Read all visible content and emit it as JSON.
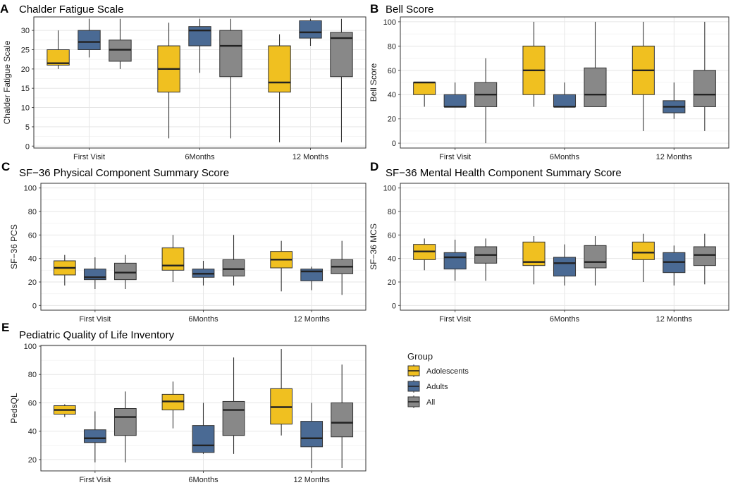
{
  "colors": {
    "Adolescents": "#F0C020",
    "Adults": "#4A6A94",
    "All": "#888888",
    "grid": "#E6E6E6",
    "frame": "#333333"
  },
  "legend": {
    "title": "Group",
    "items": [
      {
        "name": "Adolescents",
        "color_key": "Adolescents"
      },
      {
        "name": "Adults",
        "color_key": "Adults"
      },
      {
        "name": "All",
        "color_key": "All"
      }
    ]
  },
  "chart_data": [
    {
      "letter": "A",
      "title": "Chalder Fatigue Scale",
      "type": "boxplot",
      "ylabel": "Chalder Fatigue Scale",
      "ylim": [
        -0.5,
        33.5
      ],
      "yticks": [
        0,
        5,
        10,
        15,
        20,
        25,
        30
      ],
      "categories": [
        "First Visit",
        "6Months",
        "12 Months"
      ],
      "groups": [
        "Adolescents",
        "Adults",
        "All"
      ],
      "boxes": [
        [
          {
            "min": 20,
            "q1": 21,
            "median": 21.5,
            "q3": 25,
            "max": 30
          },
          {
            "min": 23,
            "q1": 25,
            "median": 27,
            "q3": 30,
            "max": 33
          },
          {
            "min": 20,
            "q1": 22,
            "median": 25,
            "q3": 27.5,
            "max": 33
          }
        ],
        [
          {
            "min": 2,
            "q1": 14,
            "median": 20,
            "q3": 26,
            "max": 32
          },
          {
            "min": 19,
            "q1": 26,
            "median": 30,
            "q3": 31,
            "max": 33
          },
          {
            "min": 2,
            "q1": 18,
            "median": 26,
            "q3": 30,
            "max": 33
          }
        ],
        [
          {
            "min": 1,
            "q1": 14,
            "median": 16.5,
            "q3": 26,
            "max": 29
          },
          {
            "min": 26,
            "q1": 28,
            "median": 29.5,
            "q3": 32.5,
            "max": 33
          },
          {
            "min": 1,
            "q1": 18,
            "median": 28,
            "q3": 29.5,
            "max": 33
          }
        ]
      ]
    },
    {
      "letter": "B",
      "title": "Bell Score",
      "type": "boxplot",
      "ylabel": "Bell Score",
      "ylim": [
        -4,
        104
      ],
      "yticks": [
        0,
        20,
        40,
        60,
        80,
        100
      ],
      "categories": [
        "First Visit",
        "6Months",
        "12 Months"
      ],
      "groups": [
        "Adolescents",
        "Adults",
        "All"
      ],
      "boxes": [
        [
          {
            "min": 30,
            "q1": 40,
            "median": 50,
            "q3": 50,
            "max": 50
          },
          {
            "min": 30,
            "q1": 30,
            "median": 30,
            "q3": 40,
            "max": 50
          },
          {
            "min": 0,
            "q1": 30,
            "median": 40,
            "q3": 50,
            "max": 70
          }
        ],
        [
          {
            "min": 30,
            "q1": 40,
            "median": 60,
            "q3": 80,
            "max": 100
          },
          {
            "min": 30,
            "q1": 30,
            "median": 30,
            "q3": 40,
            "max": 50
          },
          {
            "min": 30,
            "q1": 30,
            "median": 40,
            "q3": 62,
            "max": 100
          }
        ],
        [
          {
            "min": 10,
            "q1": 40,
            "median": 60,
            "q3": 80,
            "max": 100
          },
          {
            "min": 20,
            "q1": 25,
            "median": 30,
            "q3": 35,
            "max": 50
          },
          {
            "min": 10,
            "q1": 30,
            "median": 40,
            "q3": 60,
            "max": 100
          }
        ]
      ]
    },
    {
      "letter": "C",
      "title": "SF−36 Physical  Component Summary Score",
      "type": "boxplot",
      "ylabel": "SF−36 PCS",
      "ylim": [
        -4,
        104
      ],
      "yticks": [
        0,
        20,
        40,
        60,
        80,
        100
      ],
      "categories": [
        "First Visit",
        "6Months",
        "12 Months"
      ],
      "groups": [
        "Adolescents",
        "Adults",
        "All"
      ],
      "boxes": [
        [
          {
            "min": 17,
            "q1": 26,
            "median": 32,
            "q3": 38,
            "max": 43
          },
          {
            "min": 14,
            "q1": 22,
            "median": 24,
            "q3": 31,
            "max": 41
          },
          {
            "min": 14,
            "q1": 22,
            "median": 28,
            "q3": 36,
            "max": 43
          }
        ],
        [
          {
            "min": 20,
            "q1": 30,
            "median": 34,
            "q3": 49,
            "max": 60
          },
          {
            "min": 17,
            "q1": 24,
            "median": 27,
            "q3": 31,
            "max": 38
          },
          {
            "min": 17,
            "q1": 25,
            "median": 31,
            "q3": 39,
            "max": 60
          }
        ],
        [
          {
            "min": 12,
            "q1": 32,
            "median": 39,
            "q3": 46,
            "max": 55
          },
          {
            "min": 13,
            "q1": 21,
            "median": 29,
            "q3": 31,
            "max": 33
          },
          {
            "min": 9,
            "q1": 27,
            "median": 33,
            "q3": 39,
            "max": 55
          }
        ]
      ]
    },
    {
      "letter": "D",
      "title": "SF−36 Mental Health Component Summary Score",
      "type": "boxplot",
      "ylabel": "SF−36 MCS",
      "ylim": [
        -4,
        104
      ],
      "yticks": [
        0,
        20,
        40,
        60,
        80,
        100
      ],
      "categories": [
        "First Visit",
        "6Months",
        "12 Months"
      ],
      "groups": [
        "Adolescents",
        "Adults",
        "All"
      ],
      "boxes": [
        [
          {
            "min": 30,
            "q1": 39,
            "median": 46,
            "q3": 52,
            "max": 57
          },
          {
            "min": 21,
            "q1": 31,
            "median": 41,
            "q3": 45,
            "max": 56
          },
          {
            "min": 21,
            "q1": 36,
            "median": 43,
            "q3": 50,
            "max": 57
          }
        ],
        [
          {
            "min": 18,
            "q1": 34,
            "median": 37,
            "q3": 54,
            "max": 59
          },
          {
            "min": 17,
            "q1": 25,
            "median": 36,
            "q3": 41,
            "max": 52
          },
          {
            "min": 17,
            "q1": 32,
            "median": 37,
            "q3": 51,
            "max": 59
          }
        ],
        [
          {
            "min": 20,
            "q1": 39,
            "median": 45,
            "q3": 54,
            "max": 61
          },
          {
            "min": 17,
            "q1": 28,
            "median": 37,
            "q3": 45,
            "max": 51
          },
          {
            "min": 18,
            "q1": 34,
            "median": 43,
            "q3": 50,
            "max": 61
          }
        ]
      ]
    },
    {
      "letter": "E",
      "title": "Pediatric Quality of Life Inventory",
      "type": "boxplot",
      "ylabel": "PedsQL",
      "ylim": [
        12,
        100.5
      ],
      "yticks": [
        20,
        40,
        60,
        80,
        100
      ],
      "categories": [
        "First Visit",
        "6Months",
        "12 Months"
      ],
      "groups": [
        "Adolescents",
        "Adults",
        "All"
      ],
      "boxes": [
        [
          {
            "min": 50,
            "q1": 52,
            "median": 55,
            "q3": 58,
            "max": 59
          },
          {
            "min": 18,
            "q1": 32,
            "median": 35,
            "q3": 41,
            "max": 54
          },
          {
            "min": 18,
            "q1": 37,
            "median": 50,
            "q3": 56,
            "max": 68
          }
        ],
        [
          {
            "min": 42,
            "q1": 55,
            "median": 61,
            "q3": 66,
            "max": 75
          },
          {
            "min": 24,
            "q1": 25,
            "median": 30,
            "q3": 44,
            "max": 60
          },
          {
            "min": 24,
            "q1": 37,
            "median": 55,
            "q3": 61,
            "max": 92
          }
        ],
        [
          {
            "min": 37,
            "q1": 45,
            "median": 57,
            "q3": 70,
            "max": 98
          },
          {
            "min": 14,
            "q1": 29,
            "median": 35,
            "q3": 47,
            "max": 60
          },
          {
            "min": 14,
            "q1": 36,
            "median": 46,
            "q3": 60,
            "max": 87
          }
        ]
      ]
    }
  ]
}
